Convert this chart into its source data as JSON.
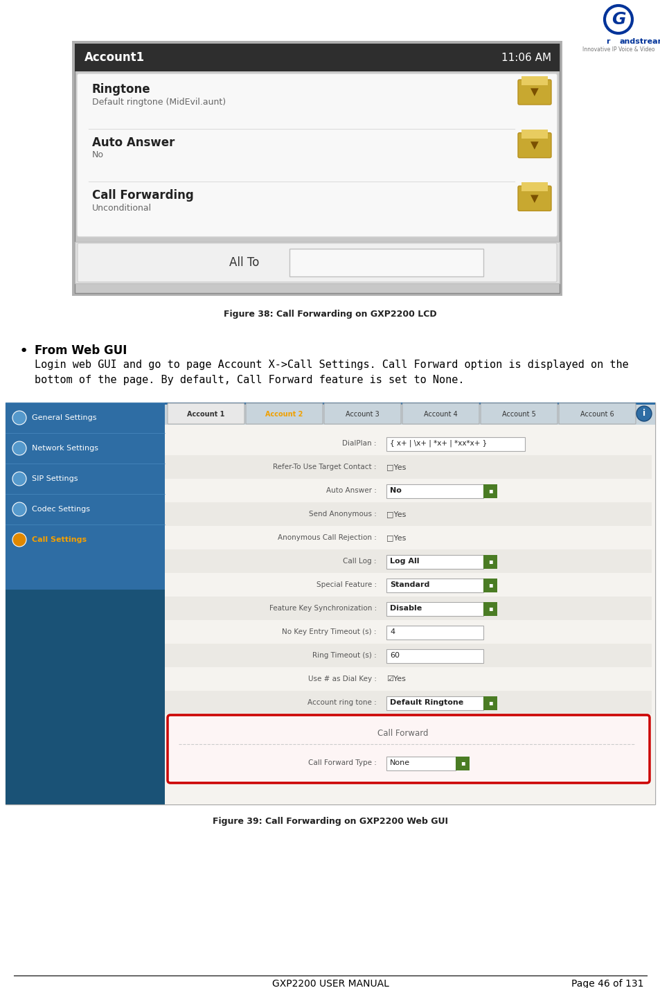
{
  "page_width": 9.54,
  "page_height": 14.26,
  "bg_color": "#ffffff",
  "footer_text_left": "GXP2200 USER MANUAL",
  "footer_text_right": "Page 46 of 131",
  "footer_fontsize": 10,
  "figure38_caption": "Figure 38: Call Forwarding on GXP2200 LCD",
  "figure39_caption": "Figure 39: Call Forwarding on GXP2200 Web GUI",
  "bullet_title": "From Web GUI",
  "lcd_screen": {
    "header_bg": "#2e2e2e",
    "header_text": "Account1",
    "header_time": "11:06 AM",
    "header_text_color": "#ffffff",
    "items": [
      {
        "title": "Ringtone",
        "value": "Default ringtone (MidEvil.aunt)"
      },
      {
        "title": "Auto Answer",
        "value": "No"
      },
      {
        "title": "Call Forwarding",
        "value": "Unconditional"
      }
    ],
    "bottom_label": "All To"
  },
  "web_gui": {
    "sidebar_bg": "#2e6da4",
    "sidebar_dark_bg": "#1a5276",
    "left_menu_items": [
      "General Settings",
      "Network Settings",
      "SIP Settings",
      "Codec Settings",
      "Call Settings"
    ],
    "left_menu_active": "Call Settings",
    "tab_items": [
      "Account 1",
      "Account 2",
      "Account 3",
      "Account 4",
      "Account 5",
      "Account 6"
    ],
    "tab_active_color": "#f0a000",
    "content_bg": "#f0f0ee",
    "fields": [
      {
        "label": "DialPlan :",
        "value": "{ x+ | \\x+ | *x+ | *xx*x+ }",
        "has_box": true
      },
      {
        "label": "Refer-To Use Target Contact :",
        "value": "□Yes",
        "has_box": false
      },
      {
        "label": "Auto Answer :",
        "value": "No",
        "has_button": true
      },
      {
        "label": "Send Anonymous :",
        "value": "□Yes",
        "has_box": false
      },
      {
        "label": "Anonymous Call Rejection :",
        "value": "□Yes",
        "has_box": false
      },
      {
        "label": "Call Log :",
        "value": "Log All",
        "has_button": true
      },
      {
        "label": "Special Feature :",
        "value": "Standard",
        "has_button": true
      },
      {
        "label": "Feature Key Synchronization :",
        "value": "Disable",
        "has_button": true
      },
      {
        "label": "No Key Entry Timeout (s) :",
        "value": "4",
        "has_inputbox": true
      },
      {
        "label": "Ring Timeout (s) :",
        "value": "60",
        "has_inputbox": true
      },
      {
        "label": "Use # as Dial Key :",
        "value": "☑Yes",
        "has_box": false
      },
      {
        "label": "Account ring tone :",
        "value": "Default Ringtone",
        "has_button": true
      }
    ],
    "call_forward_section": {
      "header": "Call Forward",
      "fields": [
        {
          "label": "Call Forward Type :",
          "value": "None",
          "has_button": true
        }
      ]
    },
    "highlight_color": "#cc0000",
    "button_color": "#4a7c24",
    "button_dark": "#3a6018"
  }
}
